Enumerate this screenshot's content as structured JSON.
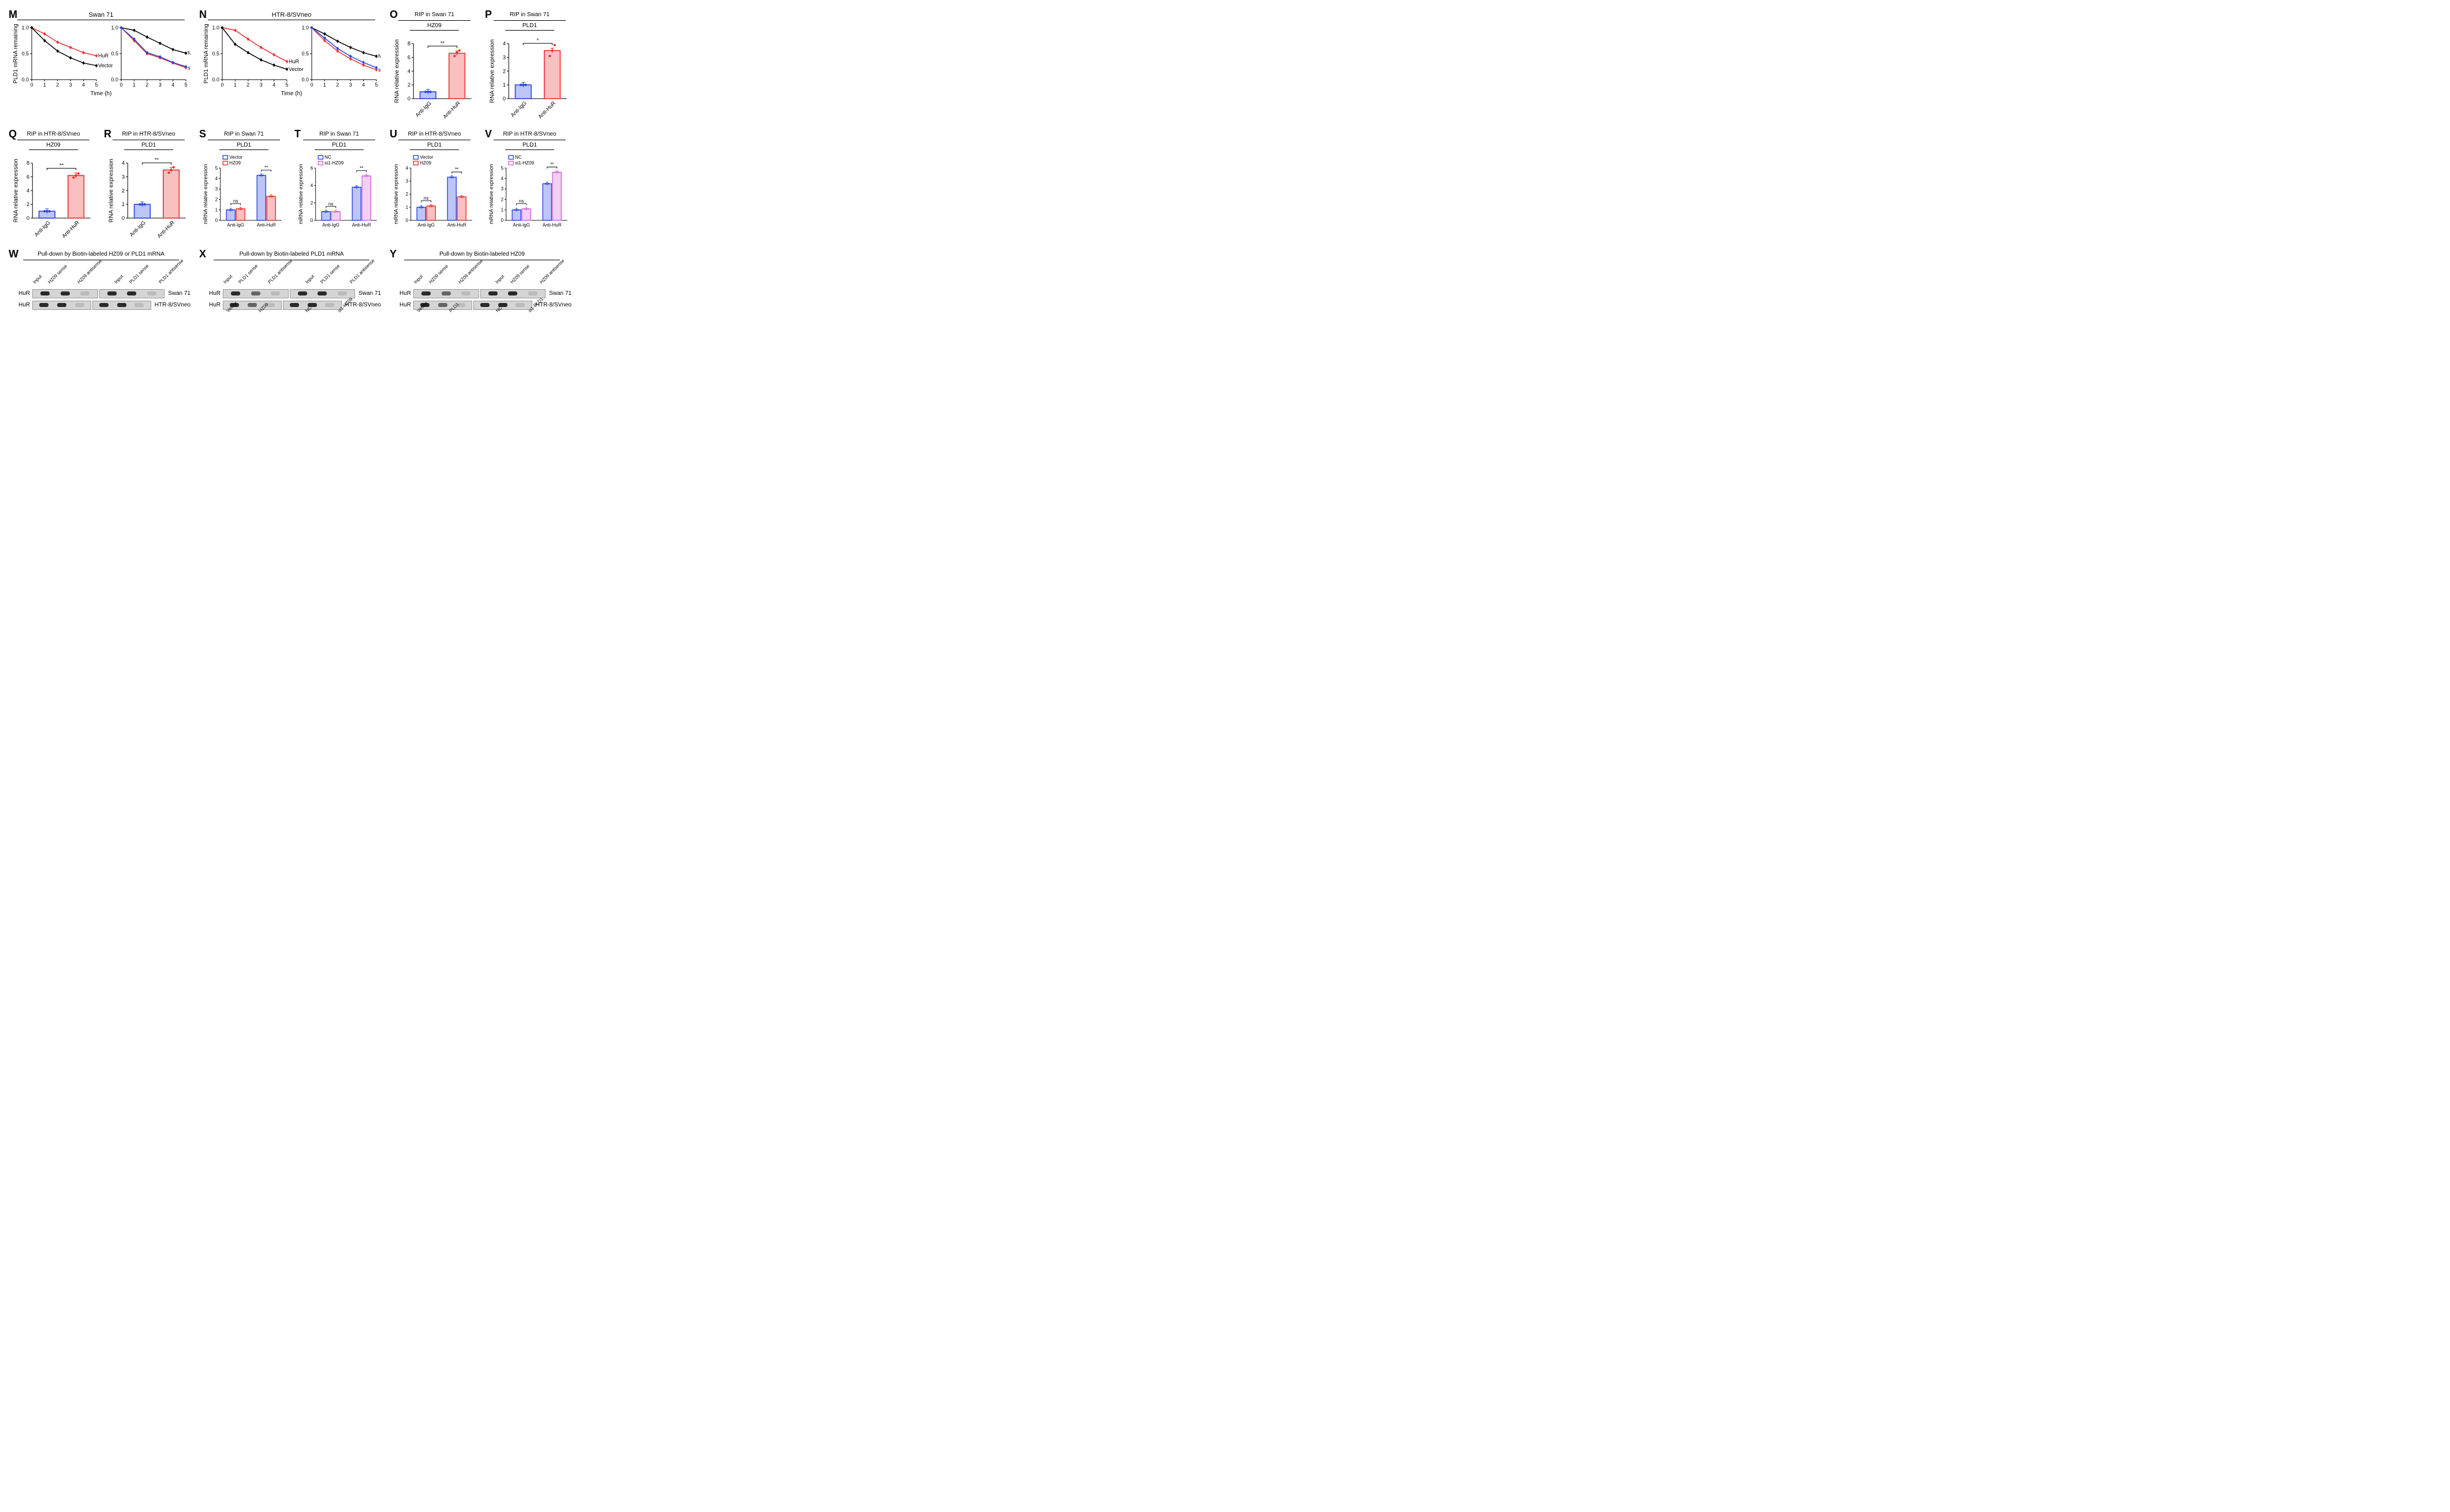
{
  "colors": {
    "red": "#ef2b2b",
    "blue": "#2440e0",
    "black": "#000000",
    "magenta": "#d262d8",
    "grey": "#888888"
  },
  "panels": {
    "M": {
      "label": "M",
      "title": "Swan 71",
      "type": "line",
      "xlabel": "Time (h)",
      "ylabel": "PLD1 mRNA remaining",
      "xlim": [
        0,
        5
      ],
      "xtick_step": 1,
      "ylim": [
        0,
        1.0
      ],
      "ytick_step": 0.5,
      "subplots": [
        {
          "series": [
            {
              "name": "HuR",
              "color": "#ef2b2b",
              "x": [
                0,
                1,
                2,
                3,
                4,
                5
              ],
              "y": [
                1.0,
                0.88,
                0.72,
                0.62,
                0.52,
                0.46
              ]
            },
            {
              "name": "Vector",
              "color": "#000000",
              "x": [
                0,
                1,
                2,
                3,
                4,
                5
              ],
              "y": [
                1.0,
                0.75,
                0.55,
                0.42,
                0.32,
                0.27
              ]
            }
          ]
        },
        {
          "series": [
            {
              "name": "NC",
              "color": "#000000",
              "x": [
                0,
                1,
                2,
                3,
                4,
                5
              ],
              "y": [
                1.0,
                0.95,
                0.82,
                0.7,
                0.58,
                0.51
              ]
            },
            {
              "name": "si1,2-HuR",
              "color": "#ef2b2b",
              "x": [
                0,
                1,
                2,
                3,
                4,
                5
              ],
              "y": [
                1.0,
                0.75,
                0.5,
                0.42,
                0.32,
                0.23
              ]
            },
            {
              "name": "",
              "color": "#2440e0",
              "x": [
                0,
                1,
                2,
                3,
                4,
                5
              ],
              "y": [
                1.0,
                0.78,
                0.52,
                0.44,
                0.33,
                0.25
              ]
            }
          ]
        }
      ]
    },
    "N": {
      "label": "N",
      "title": "HTR-8/SVneo",
      "type": "line",
      "xlabel": "Time (h)",
      "ylabel": "PLD1 mRNA remaining",
      "xlim": [
        0,
        5
      ],
      "xtick_step": 1,
      "ylim": [
        0,
        1.0
      ],
      "ytick_step": 0.5,
      "subplots": [
        {
          "series": [
            {
              "name": "HuR",
              "color": "#ef2b2b",
              "x": [
                0,
                1,
                2,
                3,
                4,
                5
              ],
              "y": [
                1.0,
                0.95,
                0.78,
                0.62,
                0.48,
                0.35
              ]
            },
            {
              "name": "Vector",
              "color": "#000000",
              "x": [
                0,
                1,
                2,
                3,
                4,
                5
              ],
              "y": [
                1.0,
                0.68,
                0.52,
                0.38,
                0.28,
                0.2
              ]
            }
          ]
        },
        {
          "series": [
            {
              "name": "NC",
              "color": "#000000",
              "x": [
                0,
                1,
                2,
                3,
                4,
                5
              ],
              "y": [
                1.0,
                0.88,
                0.74,
                0.62,
                0.52,
                0.45
              ]
            },
            {
              "name": "si1,2-HuR",
              "color": "#ef2b2b",
              "x": [
                0,
                1,
                2,
                3,
                4,
                5
              ],
              "y": [
                1.0,
                0.75,
                0.55,
                0.4,
                0.28,
                0.19
              ]
            },
            {
              "name": "",
              "color": "#2440e0",
              "x": [
                0,
                1,
                2,
                3,
                4,
                5
              ],
              "y": [
                1.0,
                0.8,
                0.6,
                0.45,
                0.33,
                0.23
              ]
            }
          ]
        }
      ]
    },
    "O": {
      "label": "O",
      "title": "RIP in Swan 71",
      "subtitle": "HZ09",
      "type": "bar",
      "ylabel": "RNA relative expression",
      "ylim": [
        0,
        8
      ],
      "ytick_step": 2,
      "categories": [
        "Anti-IgG",
        "Anti-HuR"
      ],
      "values": [
        1.0,
        6.6
      ],
      "points": [
        [
          1.0,
          1.0,
          1.0
        ],
        [
          6.2,
          6.7,
          7.0
        ]
      ],
      "colors": [
        "#2440e0",
        "#ef2b2b"
      ],
      "sig": "**"
    },
    "P": {
      "label": "P",
      "title": "RIP in Swan 71",
      "subtitle": "PLD1",
      "type": "bar",
      "ylabel": "RNA relative expression",
      "ylim": [
        0,
        4
      ],
      "ytick_step": 1,
      "categories": [
        "Anti-IgG",
        "Anti-HuR"
      ],
      "values": [
        1.0,
        3.5
      ],
      "points": [
        [
          1.0,
          1.0,
          1.0
        ],
        [
          3.1,
          3.5,
          3.9
        ]
      ],
      "colors": [
        "#2440e0",
        "#ef2b2b"
      ],
      "sig": "*"
    },
    "Q": {
      "label": "Q",
      "title": "RIP in HTR-8/SVneo",
      "subtitle": "HZ09",
      "type": "bar",
      "ylabel": "RNA relative expression",
      "ylim": [
        0,
        8
      ],
      "ytick_step": 2,
      "categories": [
        "Anti-IgG",
        "Anti-HuR"
      ],
      "values": [
        1.0,
        6.2
      ],
      "points": [
        [
          1.0,
          1.0,
          1.0
        ],
        [
          5.9,
          6.2,
          6.5
        ]
      ],
      "colors": [
        "#2440e0",
        "#ef2b2b"
      ],
      "sig": "**"
    },
    "R": {
      "label": "R",
      "title": "RIP in HTR-8/SVneo",
      "subtitle": "PLD1",
      "type": "bar",
      "ylabel": "RNA relative expression",
      "ylim": [
        0,
        4
      ],
      "ytick_step": 1,
      "categories": [
        "Anti-IgG",
        "Anti-HuR"
      ],
      "values": [
        1.0,
        3.5
      ],
      "points": [
        [
          1.0,
          1.0,
          1.0
        ],
        [
          3.3,
          3.5,
          3.7
        ]
      ],
      "colors": [
        "#2440e0",
        "#ef2b2b"
      ],
      "sig": "**"
    },
    "S": {
      "label": "S",
      "title": "RIP in Swan 71",
      "subtitle": "PLD1",
      "type": "grouped-bar",
      "ylabel": "mRNA relative expression",
      "ylim": [
        0,
        5
      ],
      "ytick_step": 1,
      "groups": [
        "Anti-IgG",
        "Anti-HuR"
      ],
      "legend": [
        "Vector",
        "HZ09"
      ],
      "legend_colors": [
        "#2440e0",
        "#ef2b2b"
      ],
      "values": [
        [
          1.0,
          1.1
        ],
        [
          4.3,
          2.3
        ]
      ],
      "sigs": [
        "ns",
        "**"
      ]
    },
    "T": {
      "label": "T",
      "title": "RIP in Swan 71",
      "subtitle": "PLD1",
      "type": "grouped-bar",
      "ylabel": "mRNA relative expression",
      "ylim": [
        0,
        6
      ],
      "ytick_step": 2,
      "groups": [
        "Anti-IgG",
        "Anti-HuR"
      ],
      "legend": [
        "NC",
        "si1-HZ09"
      ],
      "legend_colors": [
        "#2440e0",
        "#d262d8"
      ],
      "values": [
        [
          1.0,
          1.0
        ],
        [
          3.8,
          5.1
        ]
      ],
      "sigs": [
        "ns",
        "**"
      ]
    },
    "U": {
      "label": "U",
      "title": "RIP in HTR-8/SVneo",
      "subtitle": "PLD1",
      "type": "grouped-bar",
      "ylabel": "mRNA relative expression",
      "ylim": [
        0,
        4
      ],
      "ytick_step": 1,
      "groups": [
        "Anti-IgG",
        "Anti-HuR"
      ],
      "legend": [
        "Vector",
        "HZ09"
      ],
      "legend_colors": [
        "#2440e0",
        "#ef2b2b"
      ],
      "values": [
        [
          1.0,
          1.1
        ],
        [
          3.3,
          1.8
        ]
      ],
      "sigs": [
        "ns",
        "**"
      ]
    },
    "V": {
      "label": "V",
      "title": "RIP in HTR-8/SVneo",
      "subtitle": "PLD1",
      "type": "grouped-bar",
      "ylabel": "mRNA relative expression",
      "ylim": [
        0,
        5
      ],
      "ytick_step": 1,
      "groups": [
        "Anti-IgG",
        "Anti-HuR"
      ],
      "legend": [
        "NC",
        "si1-HZ09"
      ],
      "legend_colors": [
        "#2440e0",
        "#d262d8"
      ],
      "values": [
        [
          1.0,
          1.1
        ],
        [
          3.5,
          4.6
        ]
      ],
      "sigs": [
        "ns",
        "**"
      ]
    },
    "W": {
      "label": "W",
      "title": "Pull-down by Biotin-labeled HZ09 or PLD1 mRNA",
      "row_label": "HuR",
      "lane_groups": [
        {
          "lanes": [
            "Input",
            "HZ09 sense",
            "HZ09 antisense"
          ],
          "intensities": [
            1,
            1,
            0
          ]
        },
        {
          "lanes": [
            "Input",
            "PLD1 sense",
            "PLD1 antisense"
          ],
          "intensities": [
            1,
            1,
            0
          ]
        }
      ],
      "samples": [
        "Swan 71",
        "HTR-8/SVneo"
      ]
    },
    "X": {
      "label": "X",
      "title": "Pull-down by Biotin-labeled PLD1 mRNA",
      "row_label": "HuR",
      "lane_groups": [
        {
          "lanes": [
            "Input",
            "PLD1 sense",
            "PLD1 antisense"
          ],
          "intensities": [
            1,
            0.5,
            0
          ],
          "bottom": [
            "Vector",
            "HZ09"
          ]
        },
        {
          "lanes": [
            "Input",
            "PLD1 sense",
            "PLD1 antisense"
          ],
          "intensities": [
            1,
            1,
            0
          ],
          "bottom": [
            "NC",
            "si1-HZ09"
          ]
        }
      ],
      "samples": [
        "Swan 71",
        "HTR-8/SVneo"
      ]
    },
    "Y": {
      "label": "Y",
      "title": "Pull-down by Biotin-labeled HZ09",
      "row_label": "HuR",
      "lane_groups": [
        {
          "lanes": [
            "Input",
            "HZ09 sense",
            "HZ09 antisense"
          ],
          "intensities": [
            1,
            0.5,
            0
          ],
          "bottom": [
            "Vector",
            "PLD1"
          ]
        },
        {
          "lanes": [
            "Input",
            "HZ09 sense",
            "HZ09 antisense"
          ],
          "intensities": [
            1,
            1,
            0
          ],
          "bottom": [
            "NC",
            "si1-PLD1"
          ]
        }
      ],
      "samples": [
        "Swan 71",
        "HTR-8/SVneo"
      ]
    }
  }
}
